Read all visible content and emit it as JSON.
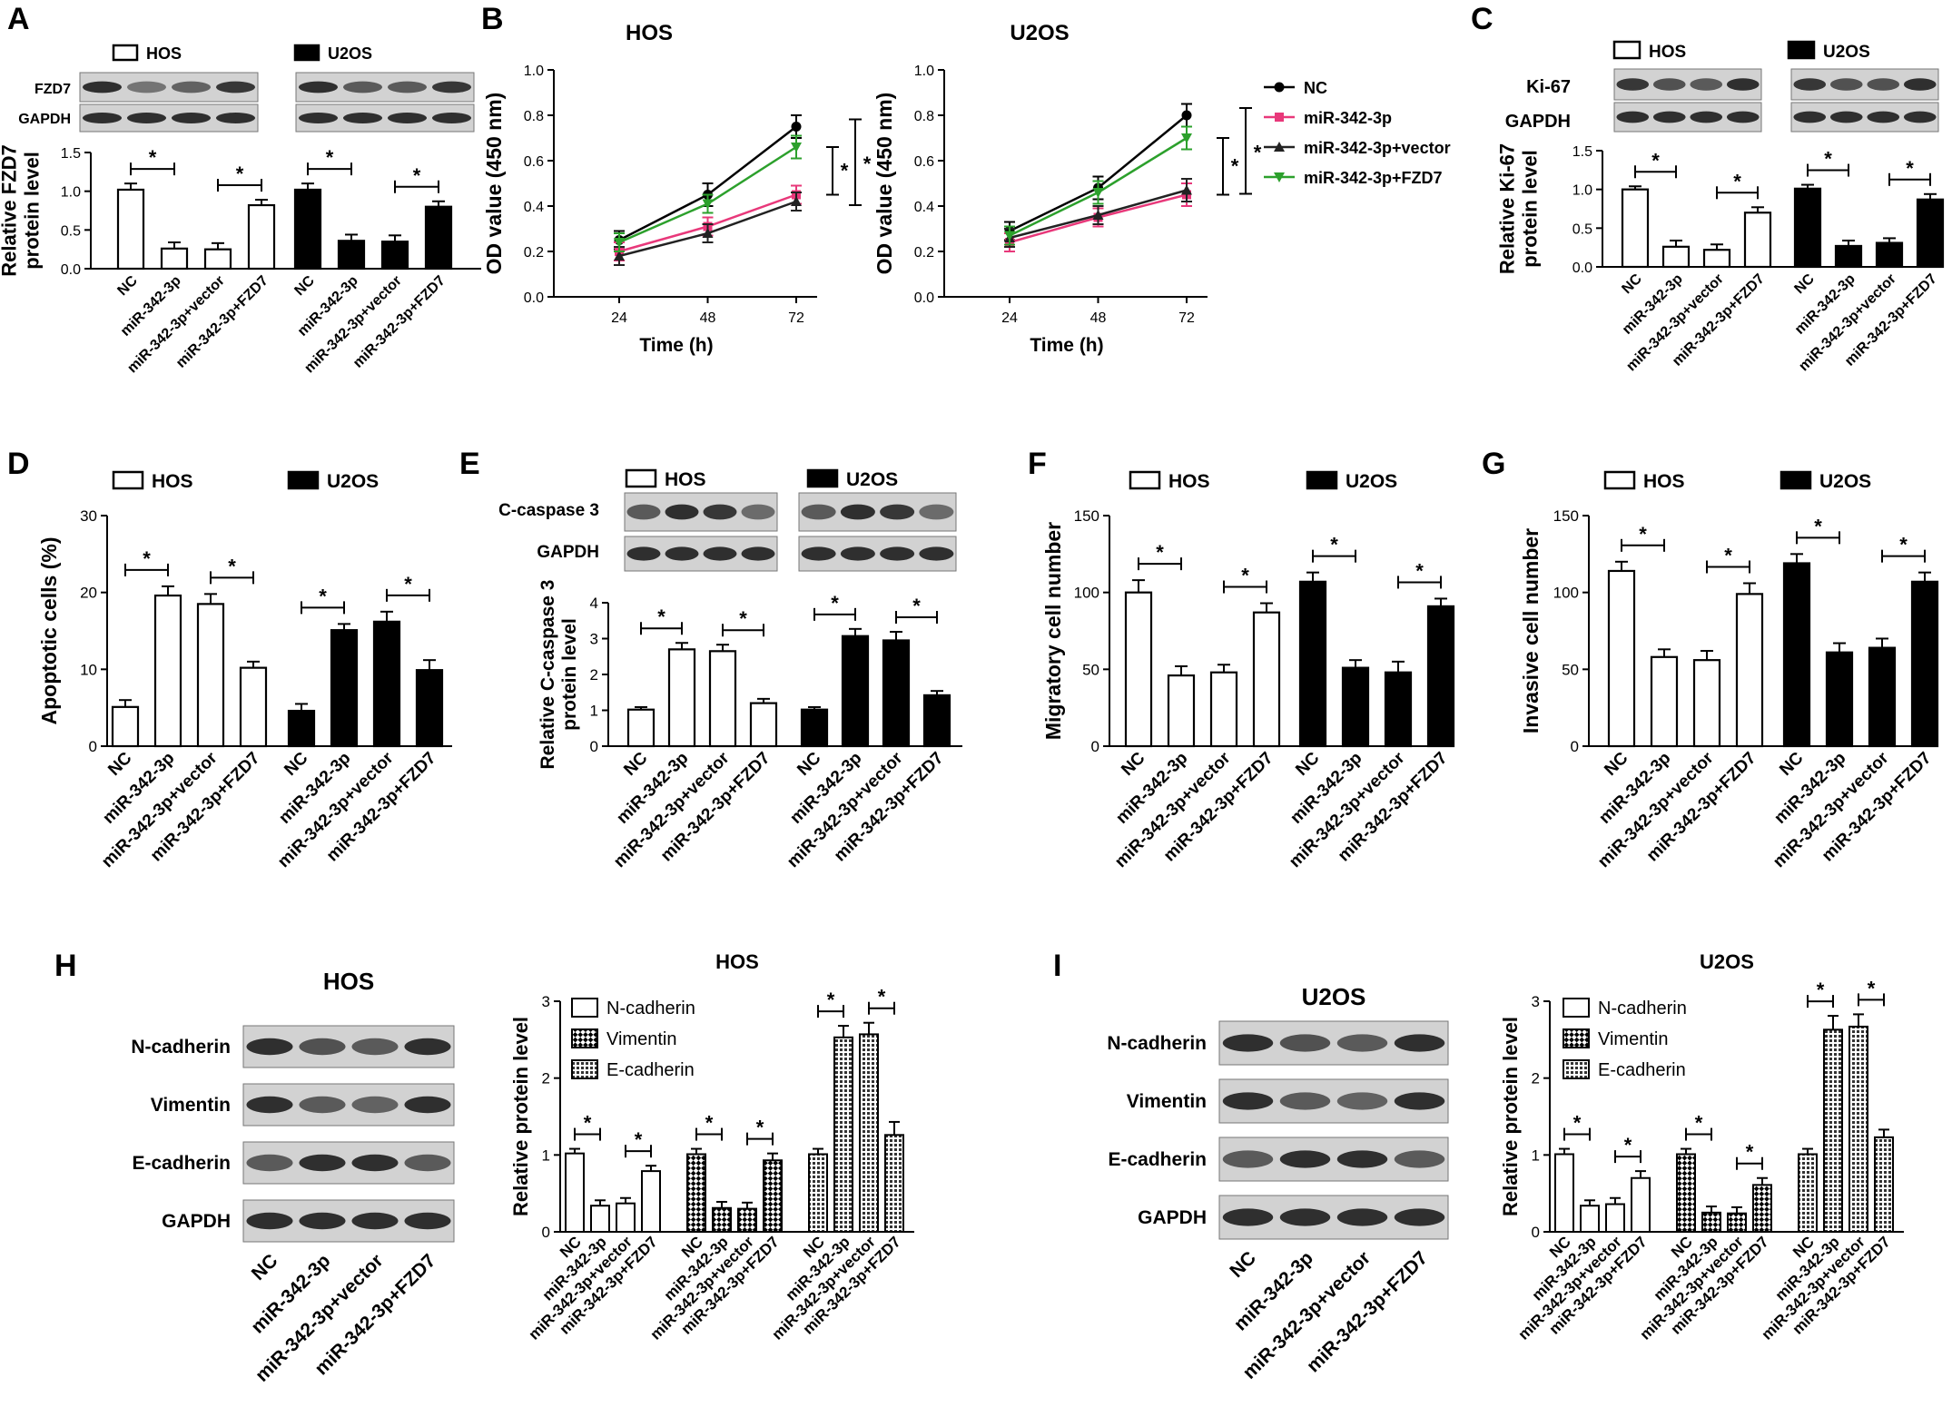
{
  "cell_lines": [
    "HOS",
    "U2OS"
  ],
  "groups": [
    "NC",
    "miR-342-3p",
    "miR-342-3p+vector",
    "miR-342-3p+FZD7"
  ],
  "significance_marker": "*",
  "colors": {
    "ink": "#000000",
    "blot_bg": "#d2d2d2",
    "band": "#262626",
    "NC": "#000000",
    "miR-342-3p": "#e8387a",
    "miR-342-3p+vector": "#222222",
    "miR-342-3p+FZD7": "#2ca02c"
  },
  "chart_data": [
    {
      "panel": "A",
      "type": "bar",
      "blots": [
        "FZD7",
        "GAPDH"
      ],
      "ylabel": "Relative FZD7\nprotein level",
      "ylim": [
        0,
        1.5
      ],
      "ticks": [
        "0.0",
        "0.5",
        "1.0",
        "1.5"
      ],
      "series": [
        {
          "name": "HOS",
          "fill": "open",
          "values": [
            1.02,
            0.26,
            0.25,
            0.82
          ],
          "errors": [
            0.08,
            0.08,
            0.08,
            0.07
          ]
        },
        {
          "name": "U2OS",
          "fill": "solid",
          "values": [
            1.02,
            0.36,
            0.35,
            0.8
          ],
          "errors": [
            0.08,
            0.08,
            0.08,
            0.07
          ]
        }
      ]
    },
    {
      "panel": "B",
      "type": "line",
      "xlabel": "Time (h)",
      "ylabel": "OD value (450 nm)",
      "x": [
        24,
        48,
        72
      ],
      "xticks": [
        "24",
        "48",
        "72"
      ],
      "ylim": [
        0,
        1.0
      ],
      "yticks": [
        "0.0",
        "0.2",
        "0.4",
        "0.6",
        "0.8",
        "1.0"
      ],
      "plots": [
        {
          "title": "HOS",
          "series": [
            {
              "name": "NC",
              "values": [
                0.25,
                0.45,
                0.75
              ],
              "errors": [
                0.04,
                0.05,
                0.05
              ]
            },
            {
              "name": "miR-342-3p",
              "values": [
                0.2,
                0.31,
                0.45
              ],
              "errors": [
                0.04,
                0.04,
                0.04
              ]
            },
            {
              "name": "miR-342-3p+vector",
              "values": [
                0.18,
                0.28,
                0.42
              ],
              "errors": [
                0.04,
                0.04,
                0.04
              ]
            },
            {
              "name": "miR-342-3p+FZD7",
              "values": [
                0.24,
                0.41,
                0.66
              ],
              "errors": [
                0.04,
                0.04,
                0.05
              ]
            }
          ]
        },
        {
          "title": "U2OS",
          "series": [
            {
              "name": "NC",
              "values": [
                0.29,
                0.48,
                0.8
              ],
              "errors": [
                0.04,
                0.05,
                0.05
              ]
            },
            {
              "name": "miR-342-3p",
              "values": [
                0.24,
                0.35,
                0.45
              ],
              "errors": [
                0.04,
                0.04,
                0.05
              ]
            },
            {
              "name": "miR-342-3p+vector",
              "values": [
                0.26,
                0.36,
                0.47
              ],
              "errors": [
                0.04,
                0.04,
                0.05
              ]
            },
            {
              "name": "miR-342-3p+FZD7",
              "values": [
                0.27,
                0.46,
                0.7
              ],
              "errors": [
                0.04,
                0.05,
                0.05
              ]
            }
          ]
        }
      ]
    },
    {
      "panel": "C",
      "type": "bar",
      "blots": [
        "Ki-67",
        "GAPDH"
      ],
      "ylabel": "Relative Ki-67\nprotein level",
      "ylim": [
        0,
        1.5
      ],
      "ticks": [
        "0.0",
        "0.5",
        "1.0",
        "1.5"
      ],
      "series": [
        {
          "name": "HOS",
          "fill": "open",
          "values": [
            1.0,
            0.26,
            0.22,
            0.7
          ],
          "errors": [
            0.04,
            0.08,
            0.07,
            0.07
          ]
        },
        {
          "name": "U2OS",
          "fill": "solid",
          "values": [
            1.01,
            0.27,
            0.31,
            0.87
          ],
          "errors": [
            0.05,
            0.07,
            0.06,
            0.07
          ]
        }
      ]
    },
    {
      "panel": "D",
      "type": "bar",
      "ylabel": "Apoptotic cells (%)",
      "ylim": [
        0,
        30
      ],
      "ticks": [
        "0",
        "10",
        "20",
        "30"
      ],
      "series": [
        {
          "name": "HOS",
          "fill": "open",
          "values": [
            5.1,
            19.6,
            18.5,
            10.2
          ],
          "errors": [
            0.9,
            1.2,
            1.3,
            0.8
          ]
        },
        {
          "name": "U2OS",
          "fill": "solid",
          "values": [
            4.6,
            15.1,
            16.2,
            9.9
          ],
          "errors": [
            0.9,
            0.8,
            1.3,
            1.3
          ]
        }
      ]
    },
    {
      "panel": "E",
      "type": "bar",
      "blots": [
        "C-caspase 3",
        "GAPDH"
      ],
      "ylabel": "Relative C-caspase 3\nprotein level",
      "ylim": [
        0,
        4
      ],
      "ticks": [
        "0",
        "1",
        "2",
        "3",
        "4"
      ],
      "series": [
        {
          "name": "HOS",
          "fill": "open",
          "values": [
            1.02,
            2.7,
            2.65,
            1.2
          ],
          "errors": [
            0.07,
            0.18,
            0.18,
            0.12
          ]
        },
        {
          "name": "U2OS",
          "fill": "solid",
          "values": [
            1.02,
            3.07,
            2.95,
            1.42
          ],
          "errors": [
            0.07,
            0.2,
            0.24,
            0.12
          ]
        }
      ]
    },
    {
      "panel": "F",
      "type": "bar",
      "ylabel": "Migratory cell number",
      "ylim": [
        0,
        150
      ],
      "ticks": [
        "0",
        "50",
        "100",
        "150"
      ],
      "series": [
        {
          "name": "HOS",
          "fill": "open",
          "values": [
            100,
            46,
            48,
            87
          ],
          "errors": [
            8,
            6,
            5,
            6
          ]
        },
        {
          "name": "U2OS",
          "fill": "solid",
          "values": [
            107,
            51,
            48,
            91
          ],
          "errors": [
            6,
            5,
            7,
            5
          ]
        }
      ]
    },
    {
      "panel": "G",
      "type": "bar",
      "ylabel": "Invasive cell number",
      "ylim": [
        0,
        150
      ],
      "ticks": [
        "0",
        "50",
        "100",
        "150"
      ],
      "series": [
        {
          "name": "HOS",
          "fill": "open",
          "values": [
            114,
            58,
            56,
            99
          ],
          "errors": [
            6,
            5,
            6,
            7
          ]
        },
        {
          "name": "U2OS",
          "fill": "solid",
          "values": [
            119,
            61,
            64,
            107
          ],
          "errors": [
            6,
            6,
            6,
            6
          ]
        }
      ]
    },
    {
      "panel": "H",
      "type": "bar",
      "blot_title": "HOS",
      "title": "HOS",
      "blots": [
        "N-cadherin",
        "Vimentin",
        "E-cadherin",
        "GAPDH"
      ],
      "ylabel": "Relative protein level",
      "ylim": [
        0,
        3
      ],
      "ticks": [
        "0",
        "1",
        "2",
        "3"
      ],
      "series": [
        {
          "name": "N-cadherin",
          "values": [
            1.02,
            0.34,
            0.37,
            0.79
          ],
          "errors": [
            0.06,
            0.07,
            0.07,
            0.07
          ]
        },
        {
          "name": "Vimentin",
          "values": [
            1.01,
            0.31,
            0.3,
            0.93
          ],
          "errors": [
            0.07,
            0.08,
            0.08,
            0.09
          ]
        },
        {
          "name": "E-cadherin",
          "values": [
            1.01,
            2.53,
            2.57,
            1.26
          ],
          "errors": [
            0.07,
            0.15,
            0.15,
            0.17
          ]
        }
      ]
    },
    {
      "panel": "I",
      "type": "bar",
      "blot_title": "U2OS",
      "title": "U2OS",
      "blots": [
        "N-cadherin",
        "Vimentin",
        "E-cadherin",
        "GAPDH"
      ],
      "ylabel": "Relative protein level",
      "ylim": [
        0,
        3
      ],
      "ticks": [
        "0",
        "1",
        "2",
        "3"
      ],
      "series": [
        {
          "name": "N-cadherin",
          "values": [
            1.01,
            0.34,
            0.36,
            0.7
          ],
          "errors": [
            0.07,
            0.07,
            0.08,
            0.09
          ]
        },
        {
          "name": "Vimentin",
          "values": [
            1.01,
            0.25,
            0.24,
            0.61
          ],
          "errors": [
            0.07,
            0.08,
            0.08,
            0.09
          ]
        },
        {
          "name": "E-cadherin",
          "values": [
            1.01,
            2.63,
            2.67,
            1.23
          ],
          "errors": [
            0.07,
            0.18,
            0.16,
            0.1
          ]
        }
      ]
    }
  ]
}
